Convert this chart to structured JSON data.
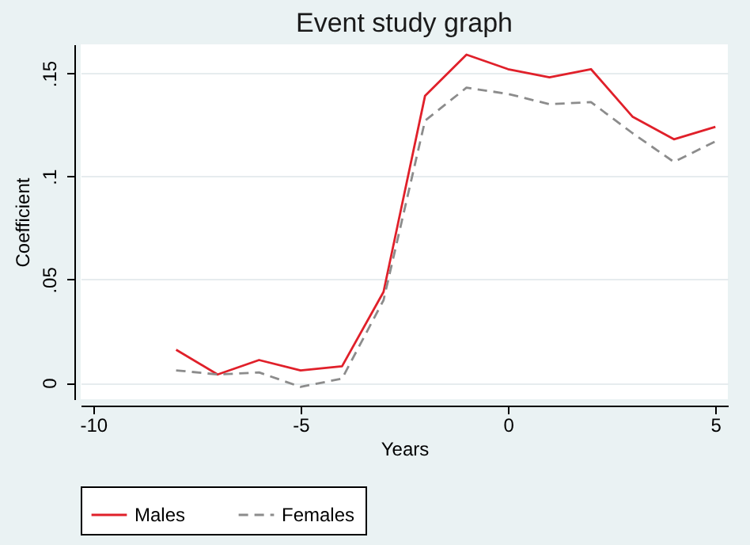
{
  "chart_data": {
    "type": "line",
    "title": "Event study graph",
    "xlabel": "Years",
    "ylabel": "Coefficient",
    "x": [
      -8,
      -7,
      -6,
      -5,
      -4,
      -3,
      -2,
      -1,
      0,
      1,
      2,
      3,
      4,
      5
    ],
    "series": [
      {
        "name": "Males",
        "color": "#e0202a",
        "line_style": "solid",
        "values": [
          0.016,
          0.004,
          0.011,
          0.006,
          0.008,
          0.044,
          0.139,
          0.159,
          0.152,
          0.148,
          0.152,
          0.129,
          0.118,
          0.124
        ]
      },
      {
        "name": "Females",
        "color": "#8c8c8c",
        "line_style": "dashed",
        "values": [
          0.006,
          0.004,
          0.005,
          -0.002,
          0.002,
          0.04,
          0.127,
          0.143,
          0.14,
          0.135,
          0.136,
          0.121,
          0.107,
          0.117
        ]
      }
    ],
    "xlim": [
      -10.3,
      5.3
    ],
    "xticks": [
      -10,
      -5,
      0,
      5
    ],
    "ylim": [
      -0.008,
      0.164
    ],
    "yticks": [
      {
        "value": 0,
        "label": "0"
      },
      {
        "value": 0.05,
        "label": ".05"
      },
      {
        "value": 0.1,
        "label": ".1"
      },
      {
        "value": 0.15,
        "label": ".15"
      }
    ],
    "grid": "y",
    "legend": "bottom",
    "marker": "none"
  }
}
